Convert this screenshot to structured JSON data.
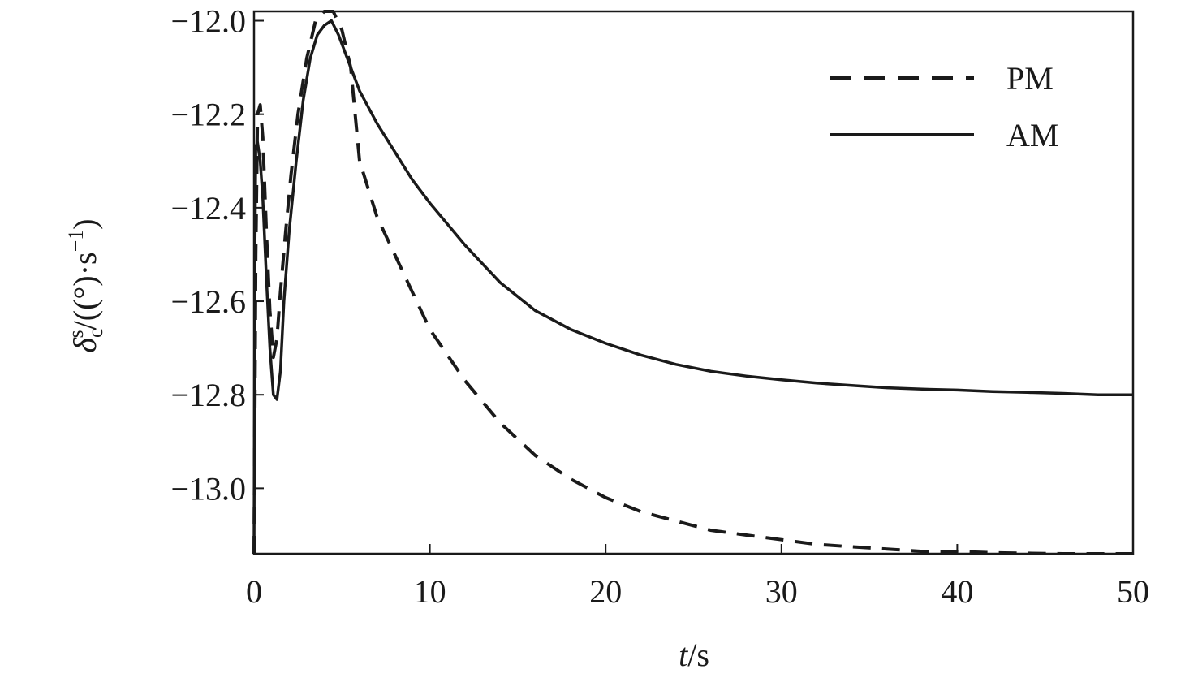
{
  "chart_data": {
    "type": "line",
    "xlabel_var": "t",
    "xlabel_unit": "/s",
    "ylabel_var": "δ",
    "ylabel_sub": "c",
    "ylabel_sup": "s",
    "ylabel_unit_main": "/((°)·s",
    "ylabel_unit_exp": "−1",
    "ylabel_unit_close": ")",
    "xlim": [
      0,
      50
    ],
    "ylim": [
      -13.14,
      -11.98
    ],
    "xticks": [
      0,
      10,
      20,
      30,
      40,
      50
    ],
    "xtick_labels": [
      "0",
      "10",
      "20",
      "30",
      "40",
      "50"
    ],
    "yticks": [
      -12.0,
      -12.2,
      -12.4,
      -12.6,
      -12.8,
      -13.0
    ],
    "ytick_labels": [
      "−12.0",
      "−12.2",
      "−12.4",
      "−12.6",
      "−12.8",
      "−13.0"
    ],
    "grid": false,
    "legend_position": "top-right",
    "series": [
      {
        "name": "PM",
        "style": "dashed",
        "color": "#1a1a1a",
        "x": [
          0,
          0.1,
          0.2,
          0.35,
          0.5,
          0.7,
          0.9,
          1.1,
          1.3,
          1.5,
          1.8,
          2.1,
          2.5,
          3.0,
          3.5,
          4.0,
          4.5,
          5.0,
          5.5,
          6,
          7,
          8,
          9,
          10,
          12,
          14,
          16,
          18,
          20,
          22,
          24,
          26,
          28,
          30,
          32,
          34,
          36,
          38,
          40,
          42,
          44,
          46,
          48,
          50
        ],
        "y": [
          -13.14,
          -12.5,
          -12.2,
          -12.18,
          -12.25,
          -12.45,
          -12.62,
          -12.72,
          -12.68,
          -12.58,
          -12.45,
          -12.33,
          -12.2,
          -12.08,
          -12.0,
          -11.98,
          -11.98,
          -12.02,
          -12.1,
          -12.3,
          -12.42,
          -12.5,
          -12.58,
          -12.66,
          -12.77,
          -12.86,
          -12.93,
          -12.98,
          -13.02,
          -13.05,
          -13.07,
          -13.09,
          -13.1,
          -13.11,
          -13.12,
          -13.125,
          -13.13,
          -13.135,
          -13.135,
          -13.138,
          -13.139,
          -13.14,
          -13.14,
          -13.14
        ]
      },
      {
        "name": "AM",
        "style": "solid",
        "color": "#1a1a1a",
        "x": [
          0,
          0.05,
          0.1,
          0.2,
          0.35,
          0.5,
          0.7,
          0.9,
          1.1,
          1.3,
          1.5,
          1.7,
          2.0,
          2.4,
          2.8,
          3.2,
          3.6,
          4.0,
          4.4,
          4.8,
          5.2,
          6,
          7,
          8,
          9,
          10,
          12,
          14,
          16,
          18,
          20,
          22,
          24,
          26,
          28,
          30,
          32,
          34,
          36,
          38,
          40,
          42,
          44,
          46,
          48,
          50
        ],
        "y": [
          -13.14,
          -12.5,
          -12.27,
          -12.26,
          -12.3,
          -12.38,
          -12.55,
          -12.7,
          -12.8,
          -12.81,
          -12.75,
          -12.6,
          -12.45,
          -12.3,
          -12.17,
          -12.08,
          -12.03,
          -12.01,
          -12.0,
          -12.03,
          -12.07,
          -12.15,
          -12.22,
          -12.28,
          -12.34,
          -12.39,
          -12.48,
          -12.56,
          -12.62,
          -12.66,
          -12.69,
          -12.715,
          -12.735,
          -12.75,
          -12.76,
          -12.768,
          -12.775,
          -12.78,
          -12.785,
          -12.788,
          -12.79,
          -12.793,
          -12.795,
          -12.797,
          -12.8,
          -12.8
        ]
      }
    ]
  }
}
